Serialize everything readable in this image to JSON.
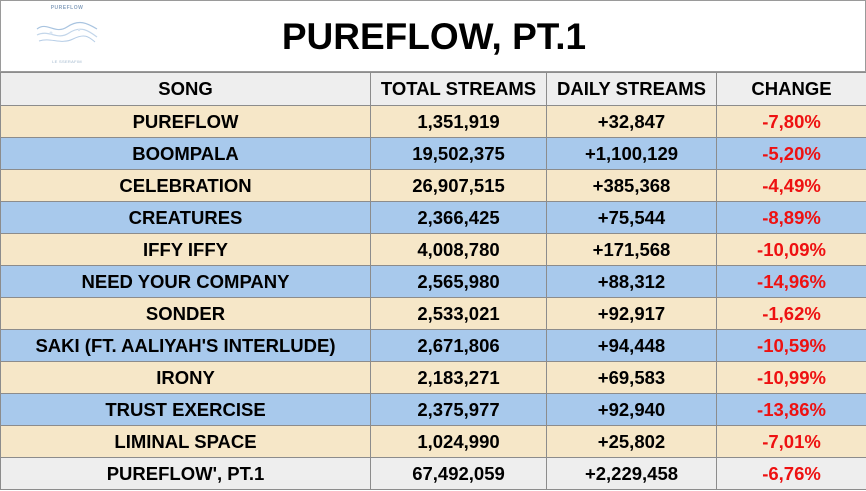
{
  "header": {
    "title": "PUREFLOW, PT.1",
    "cover_art": {
      "top_text": "PUREFLOW",
      "bottom_text": "LE SSERAFIM"
    }
  },
  "table": {
    "columns": [
      "SONG",
      "TOTAL STREAMS",
      "DAILY STREAMS",
      "CHANGE"
    ],
    "rows": [
      {
        "song": "PUREFLOW",
        "total": "1,351,919",
        "daily": "+32,847",
        "change": "-7,80%"
      },
      {
        "song": "BOOMPALA",
        "total": "19,502,375",
        "daily": "+1,100,129",
        "change": "-5,20%"
      },
      {
        "song": "CELEBRATION",
        "total": "26,907,515",
        "daily": "+385,368",
        "change": "-4,49%"
      },
      {
        "song": "CREATURES",
        "total": "2,366,425",
        "daily": "+75,544",
        "change": "-8,89%"
      },
      {
        "song": "IFFY IFFY",
        "total": "4,008,780",
        "daily": "+171,568",
        "change": "-10,09%"
      },
      {
        "song": "NEED YOUR COMPANY",
        "total": "2,565,980",
        "daily": "+88,312",
        "change": "-14,96%"
      },
      {
        "song": "SONDER",
        "total": "2,533,021",
        "daily": "+92,917",
        "change": "-1,62%"
      },
      {
        "song": "SAKI (FT. AALIYAH'S INTERLUDE)",
        "total": "2,671,806",
        "daily": "+94,448",
        "change": "-10,59%"
      },
      {
        "song": "IRONY",
        "total": "2,183,271",
        "daily": "+69,583",
        "change": "-10,99%"
      },
      {
        "song": "TRUST EXERCISE",
        "total": "2,375,977",
        "daily": "+92,940",
        "change": "-13,86%"
      },
      {
        "song": "LIMINAL SPACE",
        "total": "1,024,990",
        "daily": "+25,802",
        "change": "-7,01%"
      }
    ],
    "total_row": {
      "song": "PUREFLOW', PT.1",
      "total": "67,492,059",
      "daily": "+2,229,458",
      "change": "-6,76%"
    }
  },
  "colors": {
    "row_cream": "#f6e7c8",
    "row_blue": "#a8c9ec",
    "header_bg": "#eeeeee",
    "change_red": "#ee1111",
    "border": "#8c8c8c"
  }
}
